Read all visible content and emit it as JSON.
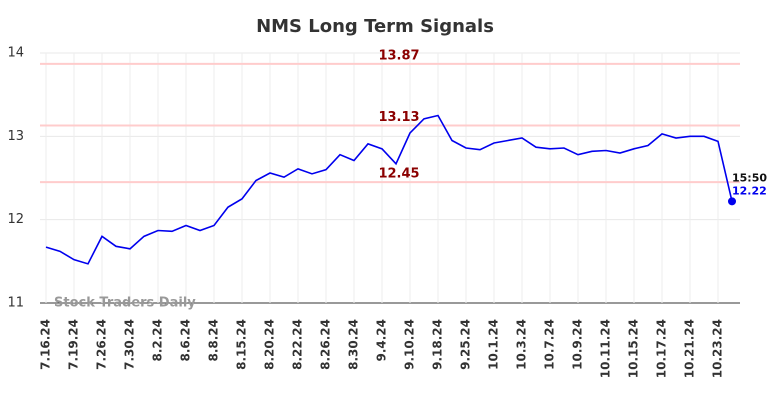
{
  "chart_data": {
    "type": "line",
    "title": "NMS Long Term Signals",
    "categories": [
      "7.16.24",
      null,
      "7.19.24",
      null,
      "7.26.24",
      null,
      "7.30.24",
      null,
      "8.2.24",
      null,
      "8.6.24",
      null,
      "8.8.24",
      null,
      "8.15.24",
      null,
      "8.20.24",
      null,
      "8.22.24",
      null,
      "8.26.24",
      null,
      "8.30.24",
      null,
      "9.4.24",
      null,
      "9.10.24",
      null,
      "9.18.24",
      null,
      "9.25.24",
      null,
      "10.1.24",
      null,
      "10.3.24",
      null,
      "10.7.24",
      null,
      "10.9.24",
      null,
      "10.11.24",
      null,
      "10.15.24",
      null,
      "10.17.24",
      null,
      "10.21.24",
      null,
      "10.23.24",
      null
    ],
    "series": [
      {
        "color": "#0000ee",
        "values": [
          11.67,
          11.62,
          11.52,
          11.47,
          11.8,
          11.68,
          11.65,
          11.8,
          11.87,
          11.86,
          11.93,
          11.87,
          11.93,
          12.15,
          12.25,
          12.47,
          12.56,
          12.51,
          12.61,
          12.55,
          12.6,
          12.78,
          12.71,
          12.91,
          12.85,
          12.67,
          13.04,
          13.21,
          13.25,
          12.95,
          12.86,
          12.84,
          12.92,
          12.95,
          12.98,
          12.87,
          12.85,
          12.86,
          12.78,
          12.82,
          12.83,
          12.8,
          12.85,
          12.89,
          13.03,
          12.98,
          13.0,
          13.0,
          12.94,
          12.22
        ]
      }
    ],
    "hlines": [
      13.87,
      13.13,
      12.45
    ],
    "hline_color": "#ffcccc",
    "hline_label_color": "#8b0000",
    "last_time": "15:50",
    "watermark": "Stock Traders Daily",
    "ylim": [
      11,
      14
    ],
    "yticks": [
      11,
      12,
      13,
      14
    ],
    "grid": true
  }
}
